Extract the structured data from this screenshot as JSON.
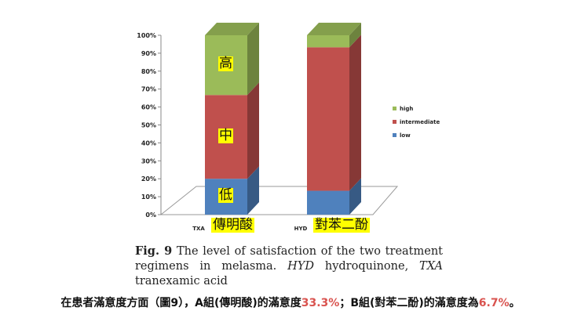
{
  "chart_data": {
    "type": "stacked-bar-3d",
    "title": "",
    "xlabel": "",
    "ylabel": "",
    "ylim": [
      0,
      100
    ],
    "y_ticks": [
      "0%",
      "10%",
      "20%",
      "30%",
      "40%",
      "50%",
      "60%",
      "70%",
      "80%",
      "90%",
      "100%"
    ],
    "categories": [
      "TXA",
      "HYD"
    ],
    "category_annotations": [
      "傳明酸",
      "對苯二酚"
    ],
    "series": [
      {
        "name": "low",
        "color": "#4f81bd",
        "values": [
          20,
          13.3
        ]
      },
      {
        "name": "intermediate",
        "color": "#c0504d",
        "values": [
          46.7,
          80
        ]
      },
      {
        "name": "high",
        "color": "#9bbb59",
        "values": [
          33.3,
          6.7
        ]
      }
    ],
    "segment_annotations": {
      "low": "低",
      "intermediate": "中",
      "high": "高"
    },
    "legend": [
      "high",
      "intermediate",
      "low"
    ],
    "legend_position": "right"
  },
  "caption": {
    "fig_label": "Fig. 9",
    "text": " The level of satisfaction of the two treatment regimens in melasma. ",
    "abbr1": "HYD",
    "text2": " hydroquinone, ",
    "abbr2": "TXA",
    "text3": " tranexamic acid"
  },
  "footer": {
    "part1": "在患者滿意度方面（圖9），A組(傳明酸)的滿意度",
    "pct_a": "33.3%",
    "part2": "；B組(對苯二酚)的滿意度為",
    "pct_b": "6.7%",
    "part3": "。"
  }
}
